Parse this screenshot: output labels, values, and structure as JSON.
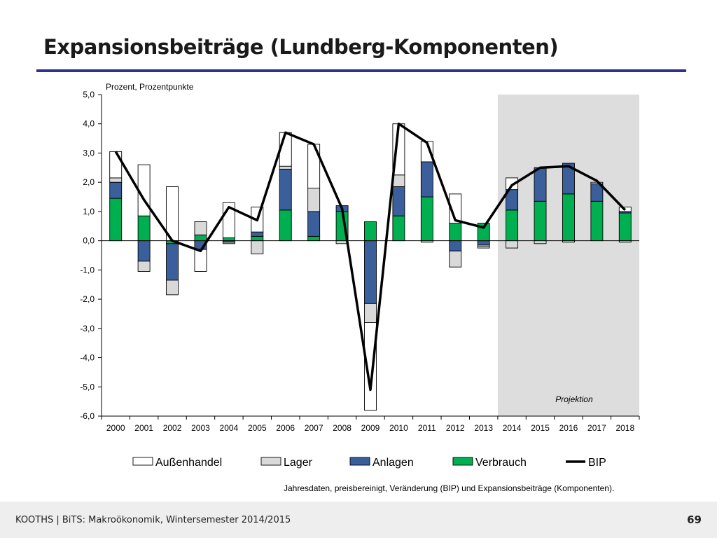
{
  "slide": {
    "title": "Expansionsbeiträge (Lundberg-Komponenten)",
    "footer": "KOOTHS | BiTS: Makroökonomik, Wintersemester 2014/2015",
    "page_number": "69"
  },
  "colors": {
    "title_rule": "#2e3192",
    "aussenhandel": "#ffffff",
    "lager": "#d9d9d9",
    "anlagen": "#3a5f9a",
    "verbrauch": "#00b050",
    "bip": "#000000",
    "projection_band": "#dddddd"
  },
  "chart_data": {
    "type": "bar",
    "stacked": true,
    "ylabel": "Prozent, Prozentpunkte",
    "ylim": [
      -6,
      5
    ],
    "yticks": [
      "5,0",
      "4,0",
      "3,0",
      "2,0",
      "1,0",
      "0,0",
      "-1,0",
      "-2,0",
      "-3,0",
      "-4,0",
      "-5,0",
      "-6,0"
    ],
    "categories": [
      "2000",
      "2001",
      "2002",
      "2003",
      "2004",
      "2005",
      "2006",
      "2007",
      "2008",
      "2009",
      "2010",
      "2011",
      "2012",
      "2013",
      "2014",
      "2015",
      "2016",
      "2017",
      "2018"
    ],
    "projection": {
      "label": "Projektion",
      "from": "2014",
      "to": "2018"
    },
    "note": "Jahresdaten, preisbereinigt, Veränderung (BIP) und Expansionsbeiträge (Komponenten).",
    "legend": [
      "Außenhandel",
      "Lager",
      "Anlagen",
      "Verbrauch",
      "BIP"
    ],
    "series": [
      {
        "name": "Verbrauch",
        "type": "bar",
        "color": "#00b050",
        "values": [
          1.45,
          0.85,
          -0.1,
          0.2,
          0.1,
          0.15,
          1.05,
          0.15,
          1.0,
          0.65,
          0.85,
          1.5,
          0.6,
          0.6,
          1.05,
          1.35,
          1.6,
          1.35,
          0.95
        ]
      },
      {
        "name": "Anlagen",
        "type": "bar",
        "color": "#3a5f9a",
        "values": [
          0.55,
          -0.7,
          -1.25,
          -0.3,
          -0.05,
          0.15,
          1.4,
          0.85,
          0.2,
          -2.15,
          1.0,
          1.2,
          -0.35,
          -0.15,
          0.7,
          1.15,
          1.05,
          0.6,
          0.05
        ]
      },
      {
        "name": "Lager",
        "type": "bar",
        "color": "#d9d9d9",
        "values": [
          0.15,
          -0.35,
          -0.5,
          0.45,
          -0.05,
          -0.45,
          0.1,
          0.8,
          -0.1,
          -0.65,
          0.4,
          -0.05,
          -0.55,
          -0.05,
          -0.25,
          -0.1,
          -0.05,
          0.0,
          -0.05
        ]
      },
      {
        "name": "Außenhandel",
        "type": "bar",
        "color": "#ffffff",
        "values": [
          0.9,
          1.75,
          1.85,
          -0.75,
          1.2,
          0.85,
          1.15,
          1.5,
          0.0,
          -3.0,
          1.75,
          0.7,
          1.0,
          -0.05,
          0.4,
          0.0,
          0.0,
          0.05,
          0.15
        ]
      },
      {
        "name": "BIP",
        "type": "line",
        "color": "#000000",
        "values": [
          3.05,
          1.4,
          0.0,
          -0.35,
          1.15,
          0.7,
          3.7,
          3.3,
          1.1,
          -5.1,
          4.0,
          3.35,
          0.7,
          0.45,
          1.9,
          2.5,
          2.55,
          2.05,
          1.05
        ]
      }
    ]
  }
}
